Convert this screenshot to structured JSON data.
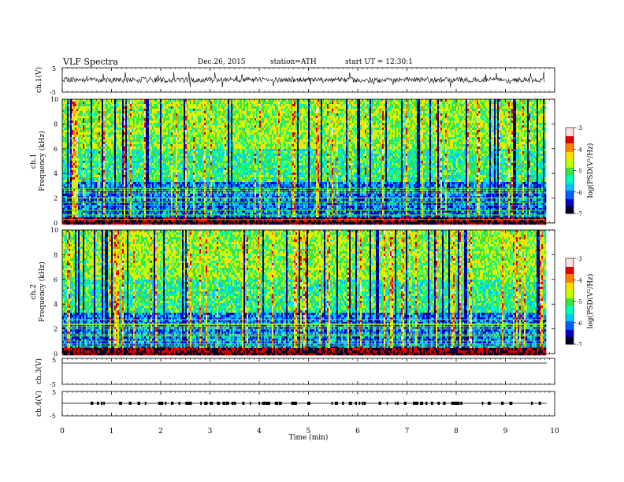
{
  "header": {
    "title": "VLF  Spectra",
    "date": "Dec.26, 2015",
    "station": "station=ATH",
    "start": "start  UT =    12:30:1"
  },
  "chart_data": [
    {
      "type": "line",
      "title": "",
      "ylabel": "ch.1(V)",
      "xlim": [
        0,
        10
      ],
      "ylim": [
        -5,
        5
      ],
      "yticks": [
        "5",
        "-5"
      ],
      "series": [
        {
          "description_only": true,
          "x_range": [
            0,
            9.8
          ],
          "baseline": 0
        }
      ]
    },
    {
      "type": "heatmap",
      "ylabel_channel": "ch.1",
      "ylabel": "Frequency  (kHz)",
      "ylim": [
        0,
        10
      ],
      "yticks": [
        "0",
        "2",
        "4",
        "6",
        "8",
        "10"
      ],
      "xlim": [
        0,
        10
      ],
      "data_x_range": [
        0,
        9.8
      ],
      "colorbar": {
        "label": "log(PSD(V²/Hz)",
        "range": [
          -7,
          -3
        ],
        "ticks": [
          "-3",
          "-4",
          "-5",
          "-6",
          "-7"
        ]
      }
    },
    {
      "type": "heatmap",
      "ylabel_channel": "ch.2",
      "ylabel": "Frequency  (kHz)",
      "ylim": [
        0,
        10
      ],
      "yticks": [
        "0",
        "2",
        "4",
        "6",
        "8",
        "10"
      ],
      "xlim": [
        0,
        10
      ],
      "data_x_range": [
        0,
        9.8
      ],
      "colorbar": {
        "label": "log(PSD(V²/Hz)",
        "range": [
          -7,
          -3
        ],
        "ticks": [
          "-3",
          "-4",
          "-5",
          "-6",
          "-7"
        ]
      }
    },
    {
      "type": "line",
      "ylabel": "ch.3(V)",
      "ylim": [
        -5,
        5
      ],
      "yticks": [
        "5",
        "-5"
      ],
      "series": [
        {
          "description_only": true,
          "value": 0
        }
      ]
    },
    {
      "type": "line",
      "ylabel": "ch.4(V)",
      "ylim": [
        -5,
        5
      ],
      "yticks": [
        "5",
        "-5"
      ],
      "series": [
        {
          "description_only": true,
          "value": 0
        }
      ]
    }
  ],
  "xaxis": {
    "label": "Time  (min)",
    "ticks": [
      "0",
      "1",
      "2",
      "3",
      "4",
      "5",
      "6",
      "7",
      "8",
      "9",
      "10"
    ],
    "range": [
      0,
      10
    ]
  },
  "colors": {
    "black": "#000000",
    "cmap": [
      "#00002a",
      "#0000c8",
      "#0060ff",
      "#00c8ff",
      "#00ffb0",
      "#40e040",
      "#c0ff00",
      "#ffe000",
      "#ff8000",
      "#e00000",
      "#ffe0e0"
    ]
  }
}
